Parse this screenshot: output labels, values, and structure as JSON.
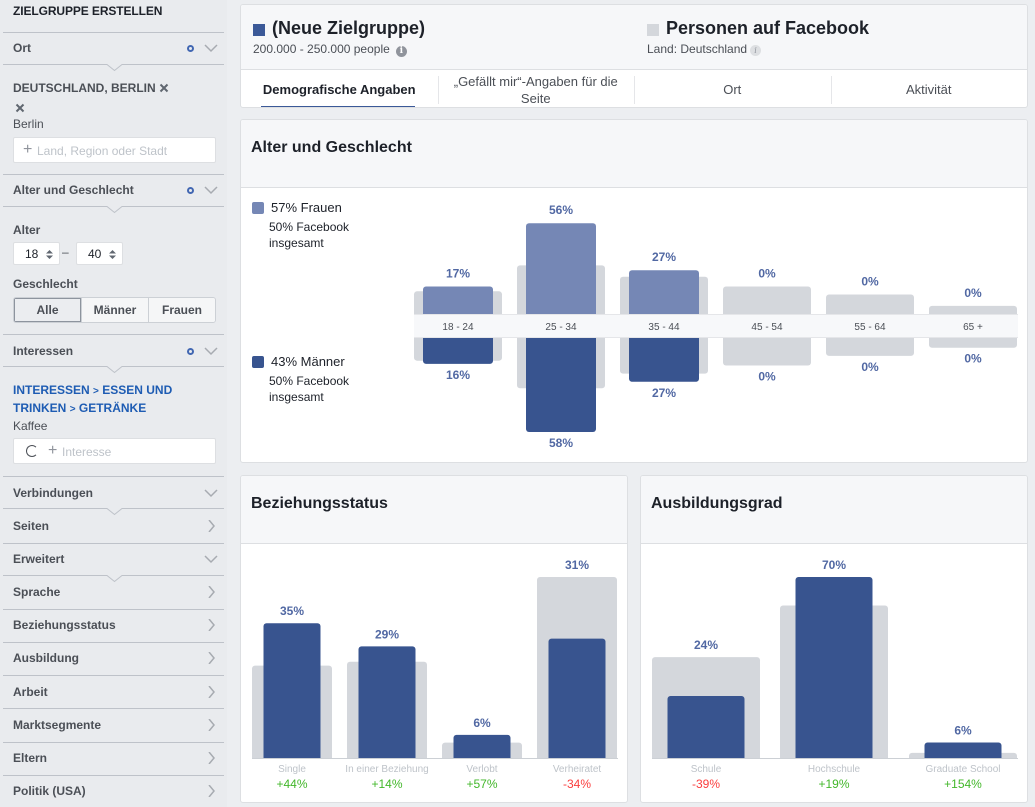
{
  "sidebar": {
    "title": "ZIELGRUPPE ERSTELLEN",
    "ort": {
      "label": "Ort",
      "selected": "DEUTSCHLAND, BERLIN",
      "location": "Berlin",
      "input_placeholder": "Land, Region oder Stadt"
    },
    "alter_geschlecht": {
      "label": "Alter und Geschlecht",
      "age_label": "Alter",
      "age_min": "18",
      "age_separator": "–",
      "age_max": "40",
      "gender_label": "Geschlecht",
      "gender_options": [
        {
          "label": "Alle",
          "selected": true
        },
        {
          "label": "Männer",
          "selected": false
        },
        {
          "label": "Frauen",
          "selected": false
        }
      ]
    },
    "interessen": {
      "label": "Interessen",
      "path": [
        "INTERESSEN",
        "ESSEN UND TRINKEN",
        "GETRÄNKE"
      ],
      "path_separator": ">",
      "item": "Kaffee",
      "input_placeholder": "Interesse"
    },
    "collapsed": [
      {
        "label": "Verbindungen",
        "chevron": "down"
      },
      {
        "label": "Seiten",
        "chevron": "right"
      },
      {
        "label": "Erweitert",
        "chevron": "down"
      },
      {
        "label": "Sprache",
        "chevron": "right"
      },
      {
        "label": "Beziehungsstatus",
        "chevron": "right"
      },
      {
        "label": "Ausbildung",
        "chevron": "right"
      },
      {
        "label": "Arbeit",
        "chevron": "right"
      },
      {
        "label": "Marktsegmente",
        "chevron": "right"
      },
      {
        "label": "Eltern",
        "chevron": "right"
      },
      {
        "label": "Politik (USA)",
        "chevron": "right"
      }
    ]
  },
  "header": {
    "audience": {
      "title": "(Neue Zielgruppe)",
      "size": "200.000 - 250.000 people"
    },
    "comparison": {
      "title": "Personen auf Facebook",
      "subtitle": "Land: Deutschland"
    },
    "info_glyph": "i",
    "tabs": [
      {
        "label": "Demografische Angaben",
        "active": true
      },
      {
        "label": "„Gefällt mir“-Angaben für die Seite",
        "active": false
      },
      {
        "label": "Ort",
        "active": false
      },
      {
        "label": "Aktivität",
        "active": false
      }
    ]
  },
  "panels": {
    "age_gender": {
      "title": "Alter und Geschlecht",
      "women": {
        "label": "57% Frauen",
        "facebook": "50% Facebook insgesamt"
      },
      "men": {
        "label": "43% Männer",
        "facebook": "50% Facebook insgesamt"
      }
    },
    "relationship": {
      "title": "Beziehungsstatus"
    },
    "education": {
      "title": "Ausbildungsgrad"
    }
  },
  "colors": {
    "audience": "#38548f",
    "audience_women": "#7587b5",
    "facebook": "#d4d7dc",
    "value_label": "#5168a3",
    "category_label": "#bec3c9",
    "positive": "#42b72a",
    "negative": "#fa3e3e",
    "band_label": "#4b4f56"
  },
  "chart_data": [
    {
      "type": "bar",
      "title": "Alter und Geschlecht",
      "categories": [
        "18 - 24",
        "25 - 34",
        "35 - 44",
        "45 - 54",
        "55 - 64",
        "65 +"
      ],
      "series": [
        {
          "name": "Frauen (Neue Zielgruppe)",
          "values": [
            17,
            56,
            27,
            0,
            0,
            0
          ],
          "value_labels": [
            "17%",
            "56%",
            "27%",
            "0%",
            "0%",
            "0%"
          ]
        },
        {
          "name": "Männer (Neue Zielgruppe)",
          "values": [
            16,
            58,
            27,
            0,
            0,
            0
          ],
          "value_labels": [
            "16%",
            "58%",
            "27%",
            "0%",
            "0%",
            "0%"
          ]
        }
      ],
      "comparison_series": [
        {
          "name": "Frauen (Personen auf Facebook)",
          "values": [
            14,
            30,
            23,
            17,
            12,
            5
          ]
        },
        {
          "name": "Männer (Personen auf Facebook)",
          "values": [
            14,
            31,
            22,
            17,
            11,
            6
          ]
        }
      ],
      "legend": [
        "57% Frauen",
        "43% Männer"
      ],
      "layout": "mirrored (women above, men below)"
    },
    {
      "type": "bar",
      "title": "Beziehungsstatus",
      "categories": [
        "Single",
        "In einer Beziehung",
        "Verlobt",
        "Verheiratet"
      ],
      "series": [
        {
          "name": "Neue Zielgruppe",
          "values": [
            35,
            29,
            6,
            31
          ],
          "value_labels": [
            "35%",
            "29%",
            "6%",
            "31%"
          ]
        }
      ],
      "comparison_series": [
        {
          "name": "Personen auf Facebook",
          "values": [
            24,
            25,
            4,
            47
          ]
        }
      ],
      "changes": [
        "+44%",
        "+14%",
        "+57%",
        "-34%"
      ]
    },
    {
      "type": "bar",
      "title": "Ausbildungsgrad",
      "categories": [
        "Schule",
        "Hochschule",
        "Graduate School"
      ],
      "series": [
        {
          "name": "Neue Zielgruppe",
          "values": [
            24,
            70,
            6
          ],
          "value_labels": [
            "24%",
            "70%",
            "6%"
          ]
        }
      ],
      "comparison_series": [
        {
          "name": "Personen auf Facebook",
          "values": [
            39,
            59,
            2
          ]
        }
      ],
      "changes": [
        "-39%",
        "+19%",
        "+154%"
      ]
    }
  ]
}
